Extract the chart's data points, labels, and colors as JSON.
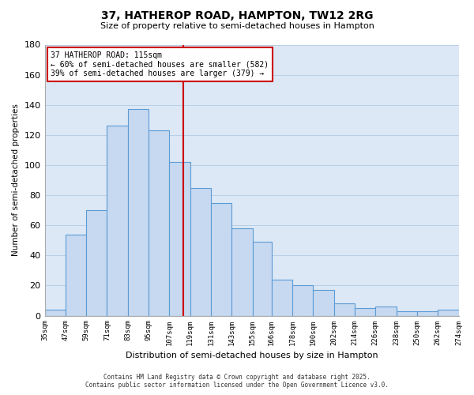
{
  "title": "37, HATHEROP ROAD, HAMPTON, TW12 2RG",
  "subtitle": "Size of property relative to semi-detached houses in Hampton",
  "xlabel": "Distribution of semi-detached houses by size in Hampton",
  "ylabel": "Number of semi-detached properties",
  "bin_edges": [
    35,
    47,
    59,
    71,
    83,
    95,
    107,
    119,
    131,
    143,
    155,
    166,
    178,
    190,
    202,
    214,
    226,
    238,
    250,
    262,
    274
  ],
  "tick_labels": [
    "35sqm",
    "47sqm",
    "59sqm",
    "71sqm",
    "83sqm",
    "95sqm",
    "107sqm",
    "119sqm",
    "131sqm",
    "143sqm",
    "155sqm",
    "166sqm",
    "178sqm",
    "190sqm",
    "202sqm",
    "214sqm",
    "226sqm",
    "238sqm",
    "250sqm",
    "262sqm",
    "274sqm"
  ],
  "bar_values": [
    4,
    54,
    70,
    126,
    137,
    123,
    102,
    85,
    75,
    58,
    49,
    24,
    20,
    17,
    8,
    5,
    6,
    3,
    3,
    4
  ],
  "bar_color": "#c6d9f0",
  "bar_edge_color": "#5b9bd5",
  "vline_x": 115,
  "vline_color": "#cc0000",
  "ylim": [
    0,
    180
  ],
  "yticks": [
    0,
    20,
    40,
    60,
    80,
    100,
    120,
    140,
    160,
    180
  ],
  "annotation_title": "37 HATHEROP ROAD: 115sqm",
  "annotation_line1": "← 60% of semi-detached houses are smaller (582)",
  "annotation_line2": "39% of semi-detached houses are larger (379) →",
  "annotation_box_color": "#ffffff",
  "annotation_box_edge": "#cc0000",
  "footer1": "Contains HM Land Registry data © Crown copyright and database right 2025.",
  "footer2": "Contains public sector information licensed under the Open Government Licence v3.0.",
  "bg_color": "#ffffff",
  "ax_bg_color": "#dce8f5",
  "grid_color": "#b8cfe8"
}
